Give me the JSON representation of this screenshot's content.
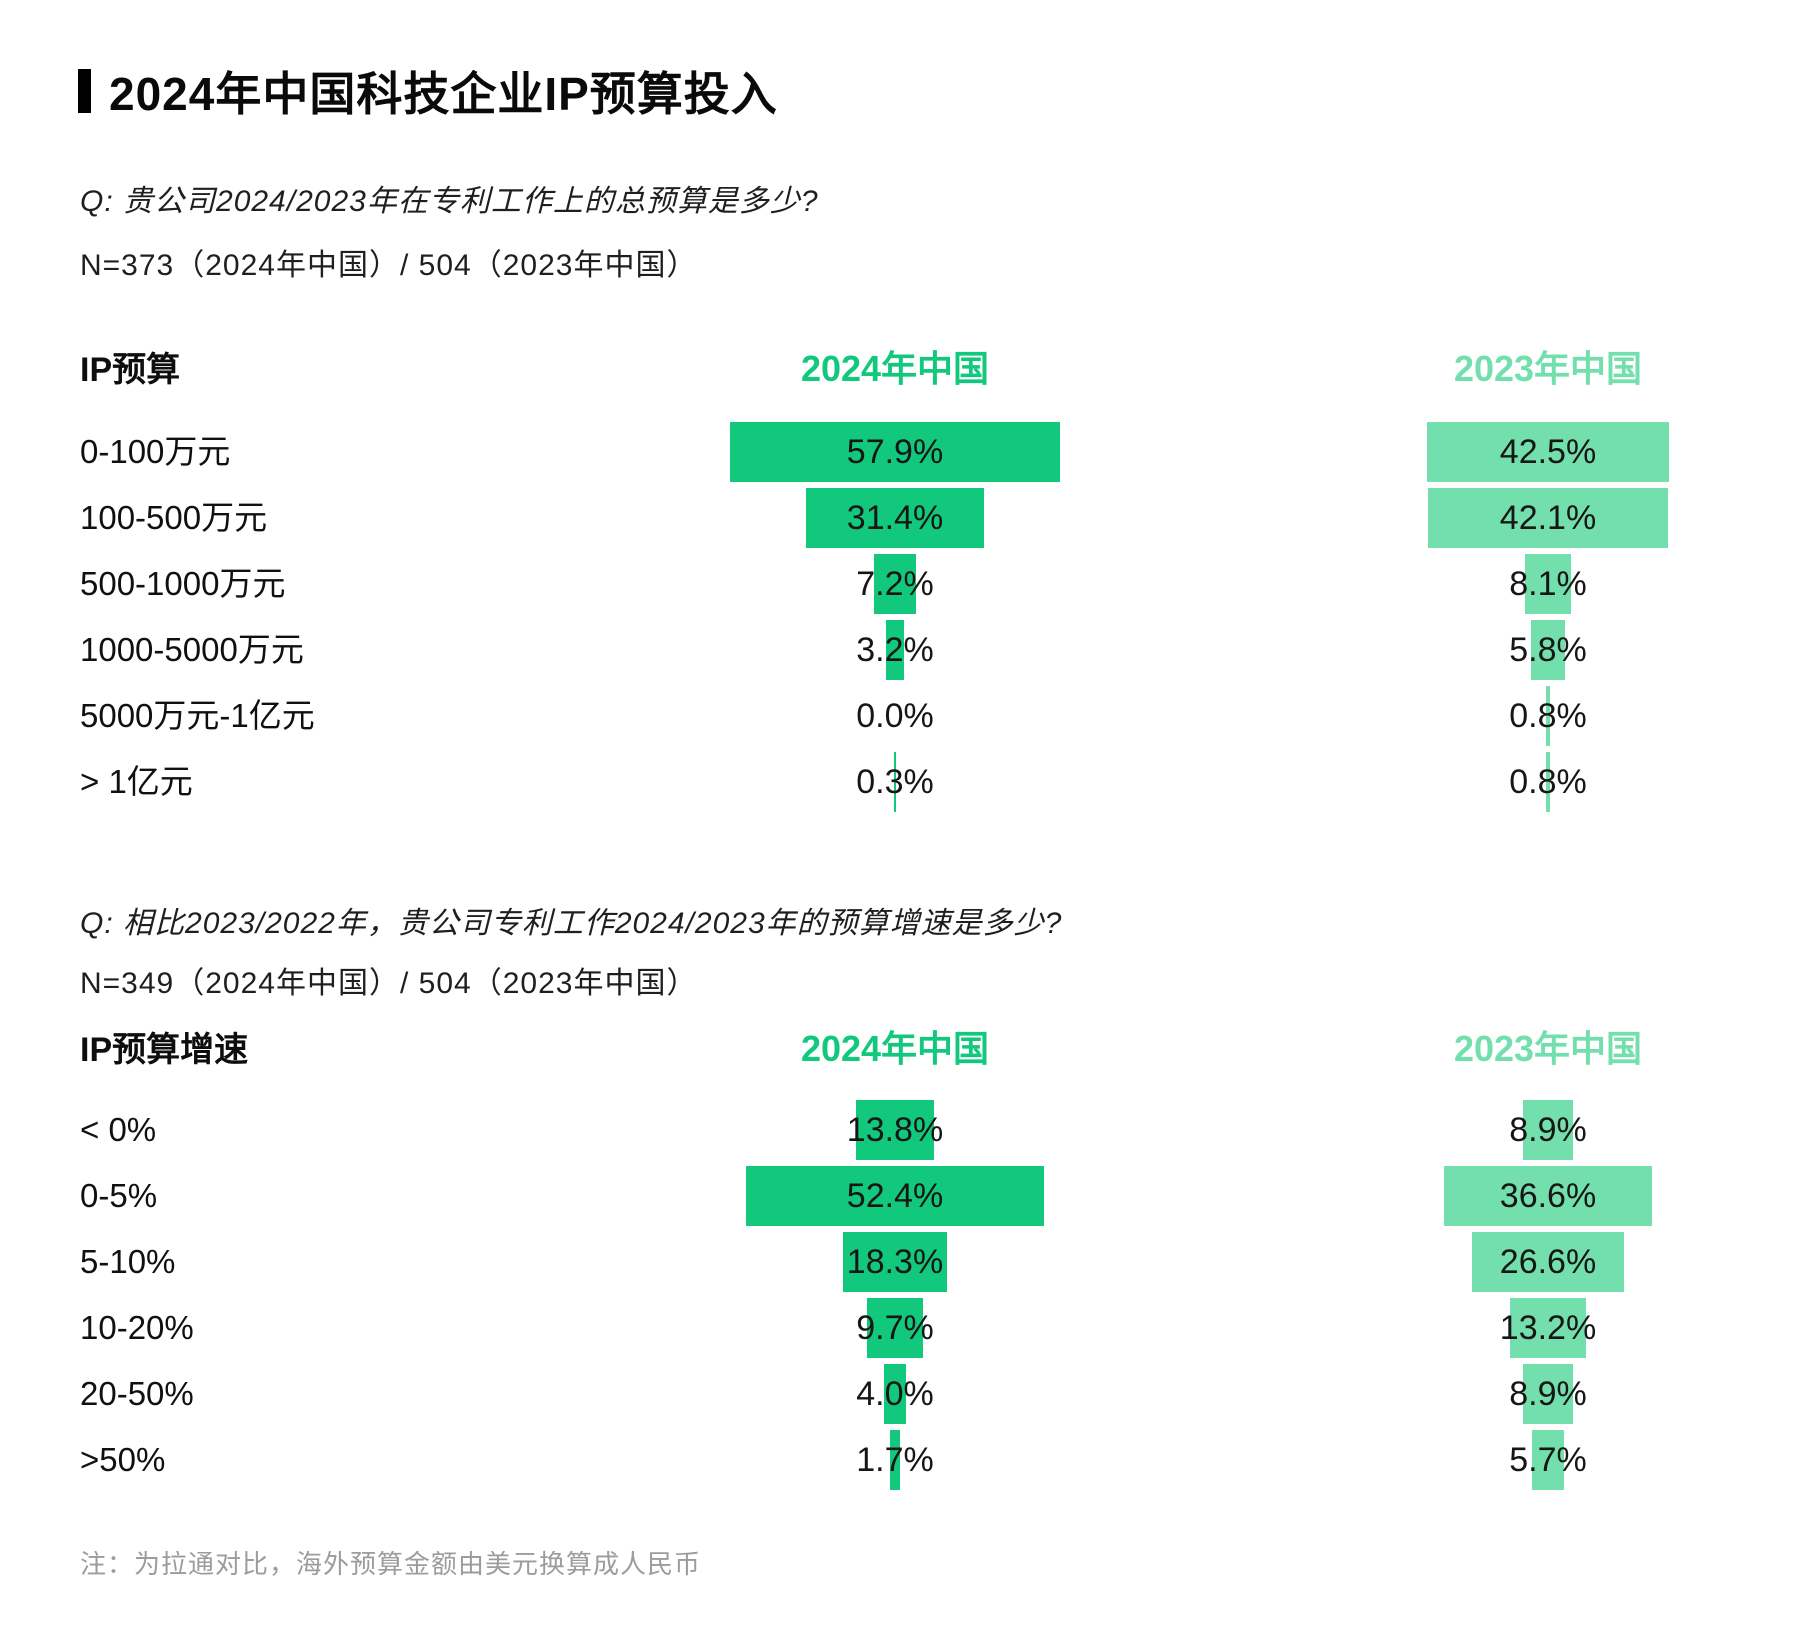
{
  "page_title": "2024年中国科技企业IP预算投入",
  "note": "注：为拉通对比，海外预算金额由美元换算成人民币",
  "colors": {
    "green_2024": "#12C87D",
    "green_2023": "#72DFAD",
    "title_black": "#0a0a0a",
    "note_gray": "#9c9c9c"
  },
  "chart_data": [
    {
      "type": "bar",
      "orientation": "horizontal-centered",
      "question": "Q: 贵公司2024/2023年在专利工作上的总预算是多少?",
      "sample_note": "N=373（2024年中国）/ 504（2023年中国）",
      "row_header": "IP预算",
      "legend_position": "column-headers-top",
      "value_suffix": "%",
      "categories": [
        "0-100万元",
        "100-500万元",
        "500-1000万元",
        "1000-5000万元",
        "5000万元-1亿元",
        "> 1亿元"
      ],
      "series": [
        {
          "name": "2024年中国",
          "color": "#12C87D",
          "values": [
            57.9,
            31.4,
            7.2,
            3.2,
            0.0,
            0.3
          ]
        },
        {
          "name": "2023年中国",
          "color": "#72DFAD",
          "values": [
            42.5,
            42.1,
            8.1,
            5.8,
            0.8,
            0.8
          ]
        }
      ]
    },
    {
      "type": "bar",
      "orientation": "horizontal-centered",
      "question": "Q: 相比2023/2022年，贵公司专利工作2024/2023年的预算增速是多少?",
      "sample_note": "N=349（2024年中国）/ 504（2023年中国）",
      "row_header": "IP预算增速",
      "legend_position": "column-headers-top",
      "value_suffix": "%",
      "categories": [
        "< 0%",
        "0-5%",
        "5-10%",
        "10-20%",
        "20-50%",
        ">50%"
      ],
      "series": [
        {
          "name": "2024年中国",
          "color": "#12C87D",
          "values": [
            13.8,
            52.4,
            18.3,
            9.7,
            4.0,
            1.7
          ]
        },
        {
          "name": "2023年中国",
          "color": "#72DFAD",
          "values": [
            8.9,
            36.6,
            26.6,
            13.2,
            8.9,
            5.7
          ]
        }
      ]
    }
  ]
}
